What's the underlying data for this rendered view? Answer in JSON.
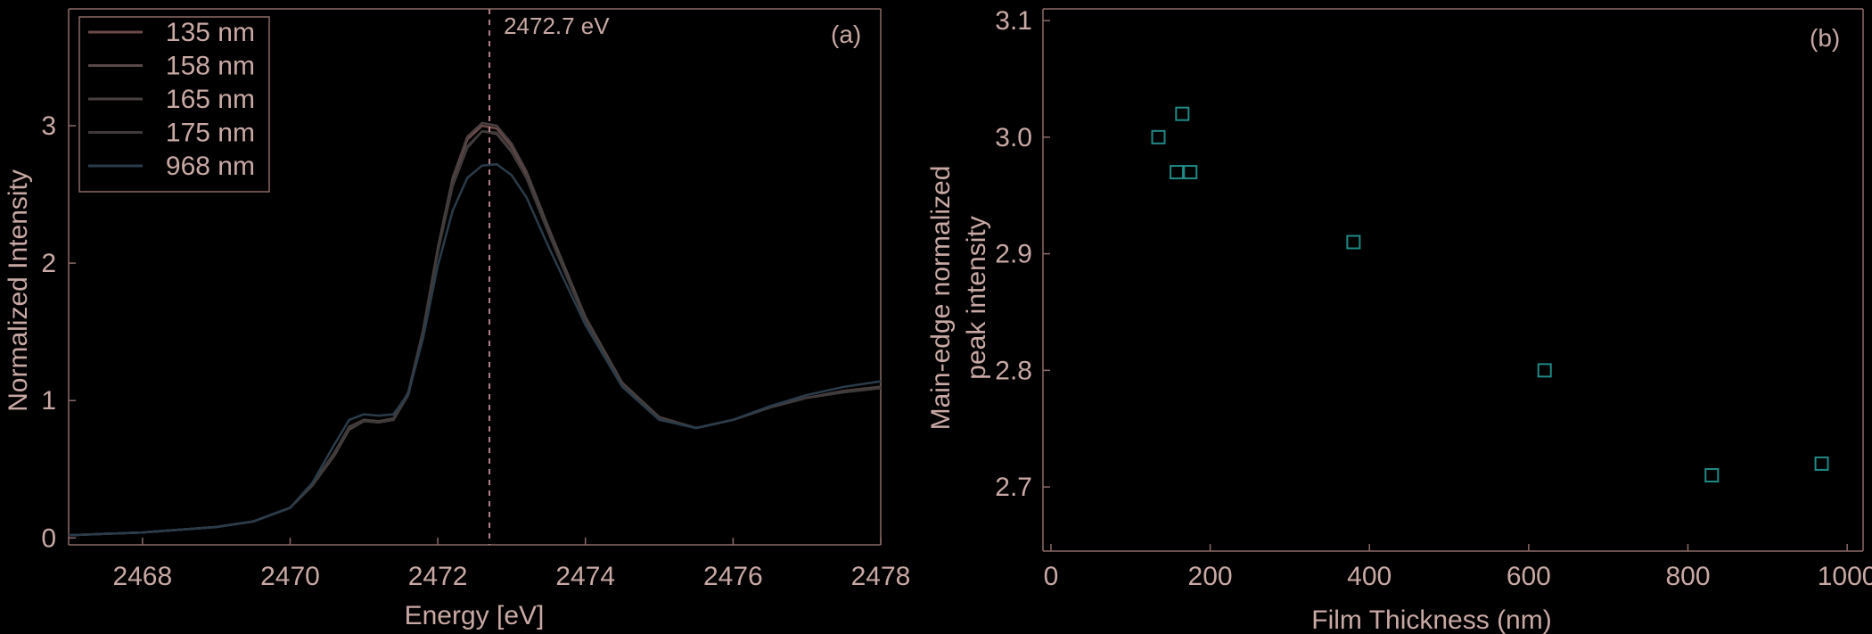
{
  "colors": {
    "background": "#000000",
    "axis": "#8a6a66",
    "text": "#c9a9a4",
    "vline": "#b5808a",
    "marker": "#1f8a86"
  },
  "chart_data": [
    {
      "type": "line",
      "panel_label": "(a)",
      "xlabel": "Energy [eV]",
      "ylabel": "Normalized Intensity",
      "xlim": [
        2467,
        2478
      ],
      "ylim": [
        -0.05,
        3.85
      ],
      "xticks": [
        2468,
        2470,
        2472,
        2474,
        2476,
        2478
      ],
      "yticks": [
        0,
        1,
        2,
        3
      ],
      "grid": false,
      "legend_position": "top-left",
      "vline": {
        "x": 2472.7,
        "label": "2472.7 eV"
      },
      "x": [
        2467,
        2468,
        2469,
        2469.5,
        2470,
        2470.3,
        2470.6,
        2470.8,
        2471,
        2471.2,
        2471.4,
        2471.6,
        2471.8,
        2472,
        2472.2,
        2472.4,
        2472.6,
        2472.8,
        2473,
        2473.2,
        2473.5,
        2474,
        2474.5,
        2475,
        2475.5,
        2476,
        2476.5,
        2477,
        2477.5,
        2478
      ],
      "series": [
        {
          "name": "135 nm",
          "color": "#6b4a48",
          "values": [
            0.02,
            0.04,
            0.08,
            0.12,
            0.22,
            0.38,
            0.62,
            0.8,
            0.86,
            0.84,
            0.86,
            1.05,
            1.5,
            2.1,
            2.6,
            2.9,
            3.0,
            2.98,
            2.85,
            2.65,
            2.25,
            1.6,
            1.12,
            0.88,
            0.8,
            0.86,
            0.95,
            1.02,
            1.07,
            1.1
          ]
        },
        {
          "name": "158 nm",
          "color": "#5a4848",
          "values": [
            0.02,
            0.04,
            0.08,
            0.12,
            0.22,
            0.38,
            0.6,
            0.79,
            0.85,
            0.84,
            0.86,
            1.04,
            1.48,
            2.08,
            2.56,
            2.84,
            2.96,
            2.94,
            2.81,
            2.62,
            2.22,
            1.58,
            1.11,
            0.87,
            0.8,
            0.86,
            0.95,
            1.02,
            1.06,
            1.09
          ]
        },
        {
          "name": "165 nm",
          "color": "#4a4040",
          "values": [
            0.02,
            0.04,
            0.08,
            0.12,
            0.22,
            0.39,
            0.62,
            0.81,
            0.86,
            0.85,
            0.87,
            1.06,
            1.51,
            2.11,
            2.62,
            2.92,
            3.02,
            3.0,
            2.87,
            2.67,
            2.26,
            1.61,
            1.13,
            0.88,
            0.8,
            0.86,
            0.95,
            1.02,
            1.07,
            1.1
          ]
        },
        {
          "name": "175 nm",
          "color": "#3e3a3a",
          "values": [
            0.02,
            0.04,
            0.08,
            0.12,
            0.22,
            0.38,
            0.61,
            0.8,
            0.85,
            0.84,
            0.86,
            1.04,
            1.49,
            2.08,
            2.57,
            2.85,
            2.96,
            2.95,
            2.82,
            2.62,
            2.22,
            1.58,
            1.11,
            0.87,
            0.8,
            0.86,
            0.95,
            1.02,
            1.06,
            1.09
          ]
        },
        {
          "name": "968 nm",
          "color": "#2a3c4a",
          "values": [
            0.02,
            0.04,
            0.08,
            0.12,
            0.22,
            0.4,
            0.68,
            0.86,
            0.9,
            0.89,
            0.9,
            1.05,
            1.45,
            1.98,
            2.38,
            2.62,
            2.71,
            2.72,
            2.64,
            2.48,
            2.12,
            1.55,
            1.1,
            0.86,
            0.8,
            0.86,
            0.96,
            1.04,
            1.1,
            1.14
          ]
        }
      ]
    },
    {
      "type": "scatter",
      "panel_label": "(b)",
      "xlabel": "Film Thickness (nm)",
      "ylabel": [
        "Main-edge normalized",
        "peak intensity"
      ],
      "xlim": [
        -10,
        1020
      ],
      "ylim": [
        2.645,
        3.11
      ],
      "xticks": [
        0,
        200,
        400,
        600,
        800,
        1000
      ],
      "yticks": [
        2.7,
        2.8,
        2.9,
        3.0,
        3.1
      ],
      "ytick_labels": [
        "2.7",
        "2.8",
        "2.9",
        "3.0",
        "3.1"
      ],
      "grid": false,
      "marker": "open-square",
      "x": [
        135,
        158,
        165,
        175,
        380,
        620,
        830,
        968
      ],
      "y": [
        3.0,
        2.97,
        3.02,
        2.97,
        2.91,
        2.8,
        2.71,
        2.72
      ]
    }
  ]
}
